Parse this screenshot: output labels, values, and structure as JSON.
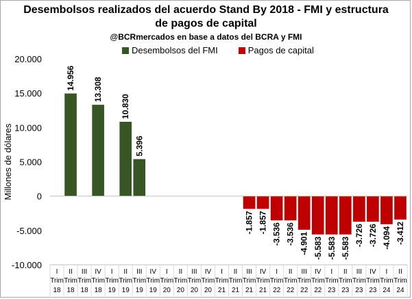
{
  "title_line1": "Desembolsos realizados del acuerdo Stand By 2018 - FMI y estructura",
  "title_line2": "de pagos de capital",
  "subtitle": "@BCRmercados en base a datos del BCRA y FMI",
  "chart_data": {
    "type": "bar",
    "ylabel": "Millones de dólares",
    "ylim": [
      -10000,
      20000
    ],
    "yticks": [
      20000,
      15000,
      10000,
      5000,
      0,
      -5000,
      -10000
    ],
    "ytick_labels": [
      "20.000",
      "15.000",
      "10.000",
      "5.000",
      "0",
      "-5.000",
      "-10.000"
    ],
    "grid": false,
    "legend_position": "top",
    "categories": [
      {
        "q": "I",
        "trim": "Trim",
        "yr": "18"
      },
      {
        "q": "II",
        "trim": "Trim",
        "yr": "18"
      },
      {
        "q": "III",
        "trim": "Trim",
        "yr": "18"
      },
      {
        "q": "IV",
        "trim": "Trim",
        "yr": "18"
      },
      {
        "q": "I",
        "trim": "Trim",
        "yr": "19"
      },
      {
        "q": "II",
        "trim": "Trim",
        "yr": "19"
      },
      {
        "q": "III",
        "trim": "Trim",
        "yr": "19"
      },
      {
        "q": "IV",
        "trim": "Trim",
        "yr": "19"
      },
      {
        "q": "I",
        "trim": "Trim",
        "yr": "20"
      },
      {
        "q": "II",
        "trim": "Trim",
        "yr": "20"
      },
      {
        "q": "III",
        "trim": "Trim",
        "yr": "20"
      },
      {
        "q": "IV",
        "trim": "Trim",
        "yr": "20"
      },
      {
        "q": "I",
        "trim": "Trim",
        "yr": "21"
      },
      {
        "q": "II",
        "trim": "Trim",
        "yr": "21"
      },
      {
        "q": "III",
        "trim": "Trim",
        "yr": "21"
      },
      {
        "q": "IV",
        "trim": "Trim",
        "yr": "21"
      },
      {
        "q": "I",
        "trim": "Trim",
        "yr": "22"
      },
      {
        "q": "II",
        "trim": "Trim",
        "yr": "22"
      },
      {
        "q": "III",
        "trim": "Trim",
        "yr": "22"
      },
      {
        "q": "IV",
        "trim": "Trim",
        "yr": "22"
      },
      {
        "q": "I",
        "trim": "Trim",
        "yr": "23"
      },
      {
        "q": "II",
        "trim": "Trim",
        "yr": "23"
      },
      {
        "q": "III",
        "trim": "Trim",
        "yr": "23"
      },
      {
        "q": "IV",
        "trim": "Trim",
        "yr": "23"
      },
      {
        "q": "I",
        "trim": "Trim",
        "yr": "24"
      },
      {
        "q": "II",
        "trim": "Trim",
        "yr": "24"
      }
    ],
    "series": [
      {
        "name": "Desembolsos del FMI",
        "color": "#375623",
        "values": [
          null,
          14956,
          null,
          13308,
          null,
          10830,
          5396,
          null,
          null,
          null,
          null,
          null,
          null,
          null,
          null,
          null,
          null,
          null,
          null,
          null,
          null,
          null,
          null,
          null,
          null,
          null
        ],
        "labels": [
          null,
          "14.956",
          null,
          "13.308",
          null,
          "10.830",
          "5.396",
          null,
          null,
          null,
          null,
          null,
          null,
          null,
          null,
          null,
          null,
          null,
          null,
          null,
          null,
          null,
          null,
          null,
          null,
          null
        ]
      },
      {
        "name": "Pagos de capital",
        "color": "#c00000",
        "values": [
          null,
          null,
          null,
          null,
          null,
          null,
          null,
          null,
          null,
          null,
          null,
          null,
          null,
          null,
          -1857,
          -1857,
          -3536,
          -3536,
          -4901,
          -5583,
          -5583,
          -5583,
          -3726,
          -3726,
          -4094,
          -3412
        ],
        "labels": [
          null,
          null,
          null,
          null,
          null,
          null,
          null,
          null,
          null,
          null,
          null,
          null,
          null,
          null,
          "-1.857",
          "-1.857",
          "-3.536",
          "-3.536",
          "-4.901",
          "-5.583",
          "-5.583",
          "-5.583",
          "-3.726",
          "-3.726",
          "-4.094",
          "-3.412"
        ]
      }
    ]
  }
}
